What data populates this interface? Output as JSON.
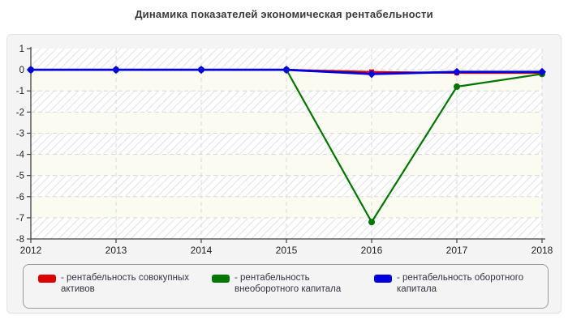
{
  "title": "Динамика показателей экономическая рентабельности",
  "chart_data": {
    "type": "line",
    "title": "Динамика показателей экономическая рентабельности",
    "categories": [
      "2012",
      "2013",
      "2014",
      "2015",
      "2016",
      "2017",
      "2018"
    ],
    "series": [
      {
        "name": "рентабельность совокупных активов",
        "color": "#dd0000",
        "marker": "square",
        "values": [
          0,
          0,
          0,
          0,
          -0.1,
          -0.15,
          -0.15
        ]
      },
      {
        "name": "рентабельность внеоборотного капитала",
        "color": "#007700",
        "marker": "circle",
        "values": [
          0,
          0,
          0,
          0,
          -7.2,
          -0.8,
          -0.2
        ]
      },
      {
        "name": "рентабельность оборотного капитала",
        "color": "#0000e0",
        "marker": "diamond",
        "values": [
          0,
          0,
          0,
          0,
          -0.2,
          -0.1,
          -0.1
        ]
      }
    ],
    "ylim": [
      -8,
      1
    ],
    "y_ticks": [
      1,
      0,
      -1,
      -2,
      -3,
      -4,
      -5,
      -6,
      -7,
      -8
    ],
    "grid": true,
    "legend_position": "bottom"
  },
  "legend": {
    "items": [
      {
        "label": "- рентабельность совокупных активов",
        "color": "#dd0000"
      },
      {
        "label": "- рентабельность внеоборотного капитала",
        "color": "#007700"
      },
      {
        "label": "- рентабельность оборотного капитала",
        "color": "#0000e0"
      }
    ]
  },
  "colors": {
    "panel_bg": "#f4f4f4",
    "band_alt": "#fbfbf1",
    "hatch_line": "#e5e5e5",
    "gridline": "#d9d9d9",
    "axis": "#444444",
    "tick_text": "#222222"
  }
}
